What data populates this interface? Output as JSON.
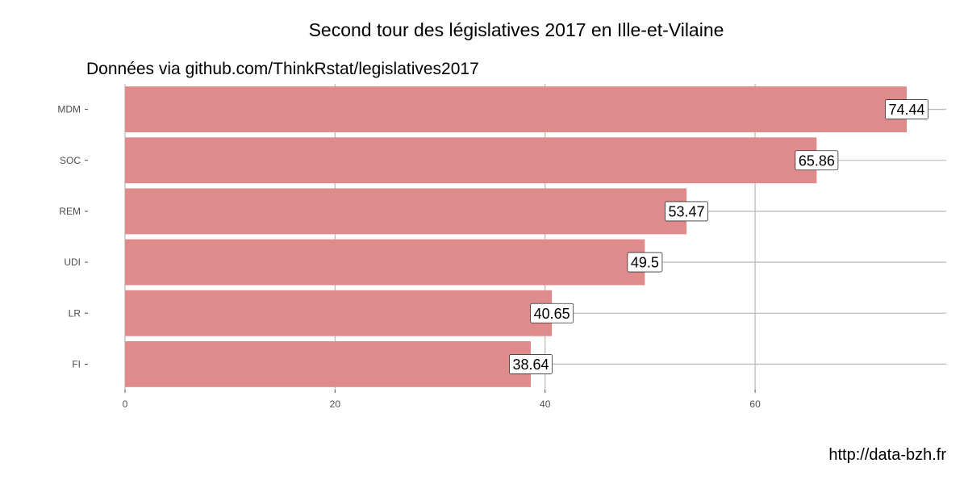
{
  "chart_data": {
    "type": "bar",
    "orientation": "horizontal",
    "title": "Second tour des législatives 2017 en Ille-et-Vilaine",
    "subtitle": "Données via github.com/ThinkRstat/legislatives2017",
    "caption": "http://data-bzh.fr",
    "xlabel": "",
    "ylabel": "",
    "categories": [
      "MDM",
      "SOC",
      "REM",
      "UDI",
      "LR",
      "FI"
    ],
    "values": [
      74.44,
      65.86,
      53.47,
      49.5,
      40.65,
      38.64
    ],
    "value_labels": [
      "74.44",
      "65.86",
      "53.47",
      "49.5",
      "40.65",
      "38.64"
    ],
    "x_ticks": [
      0,
      20,
      40,
      60
    ],
    "x_tick_labels": [
      "0",
      "20",
      "40",
      "60"
    ],
    "xlim": [
      0,
      78.2
    ],
    "grid": true,
    "legend": "none",
    "bar_color": "#df8a8b",
    "background": "#ffffff"
  }
}
